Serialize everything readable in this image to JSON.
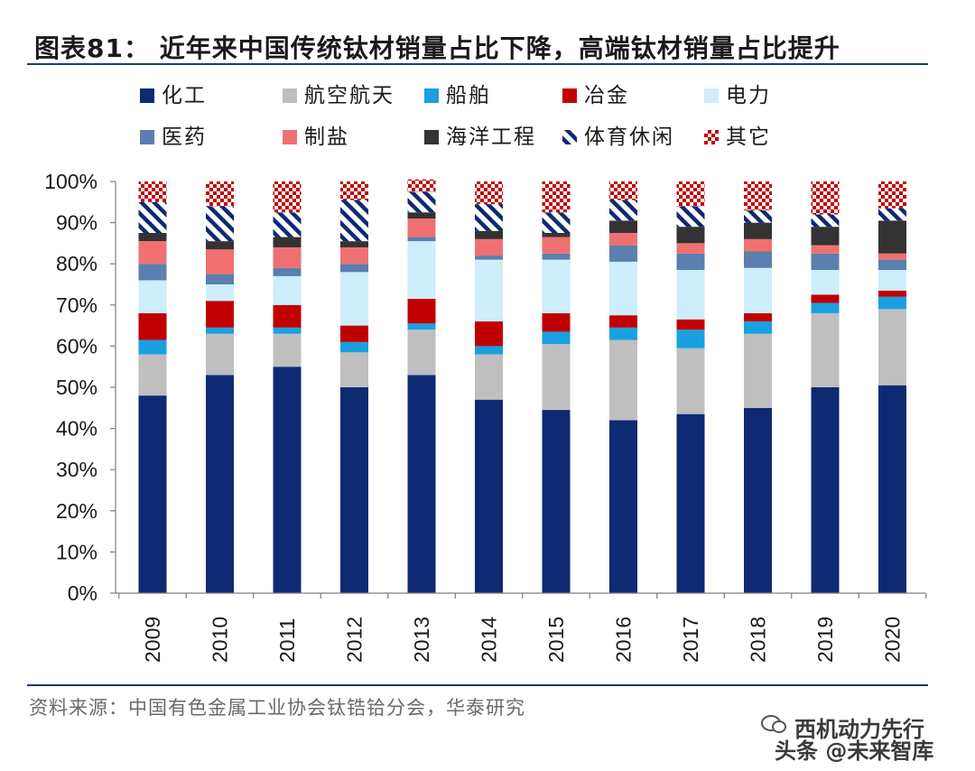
{
  "header": {
    "title": "图表81： 近年来中国传统钛材销量占比下降，高端钛材销量占比提升"
  },
  "footer": {
    "source": "资料来源：中国有色金属工业协会钛锆铪分会，华泰研究",
    "watermark_line1": "西机动力先行",
    "watermark_line2": "头条 @未来智库"
  },
  "chart_data": {
    "type": "bar",
    "stacked": true,
    "categories": [
      "2009",
      "2010",
      "2011",
      "2012",
      "2013",
      "2014",
      "2015",
      "2016",
      "2017",
      "2018",
      "2019",
      "2020"
    ],
    "ylim": [
      0,
      100
    ],
    "yticks": [
      "0%",
      "10%",
      "20%",
      "30%",
      "40%",
      "50%",
      "60%",
      "70%",
      "80%",
      "90%",
      "100%"
    ],
    "legend_position": "top",
    "series": [
      {
        "name": "化工",
        "color": "#0d2a73",
        "pattern": "solid",
        "values": [
          48,
          53,
          55,
          50,
          53,
          47,
          44.5,
          42,
          43.5,
          45,
          50,
          50.5
        ]
      },
      {
        "name": "航空航天",
        "color": "#bfbfbf",
        "pattern": "solid",
        "values": [
          10,
          10,
          8,
          8.5,
          11,
          11,
          16,
          19.5,
          16,
          18,
          18,
          18.5
        ]
      },
      {
        "name": "船舶",
        "color": "#1aa0e0",
        "pattern": "solid",
        "values": [
          3.5,
          1.5,
          1.5,
          2.5,
          1.5,
          2,
          3,
          3,
          4.5,
          3,
          2.5,
          3
        ]
      },
      {
        "name": "冶金",
        "color": "#c00000",
        "pattern": "solid",
        "values": [
          6.5,
          6.5,
          5.5,
          4,
          6,
          6,
          4.5,
          3,
          2.5,
          2,
          2,
          1.5
        ]
      },
      {
        "name": "电力",
        "color": "#cdeefa",
        "pattern": "solid",
        "values": [
          8,
          4,
          7,
          13,
          14,
          15,
          13,
          13,
          12,
          11,
          6,
          5
        ]
      },
      {
        "name": "医药",
        "color": "#5b7fae",
        "pattern": "solid",
        "values": [
          4,
          2.5,
          2,
          2,
          1,
          1,
          1.5,
          4,
          4,
          4,
          4,
          2.5
        ]
      },
      {
        "name": "制盐",
        "color": "#f07070",
        "pattern": "solid",
        "values": [
          5.5,
          6,
          5,
          4,
          4.5,
          4,
          4,
          3,
          2.5,
          3,
          2,
          1.5
        ]
      },
      {
        "name": "海洋工程",
        "color": "#333333",
        "pattern": "solid",
        "values": [
          2,
          2,
          2.5,
          1.5,
          1.5,
          2,
          1,
          3,
          4,
          4,
          4.5,
          8
        ]
      },
      {
        "name": "体育休闲",
        "color": "#0d2a73",
        "pattern": "diagonal",
        "values": [
          7.5,
          8.5,
          6,
          10,
          5,
          6.5,
          5,
          5,
          5,
          3,
          3,
          3
        ]
      },
      {
        "name": "其它",
        "color": "#c00000",
        "pattern": "checker",
        "values": [
          5,
          6,
          7.5,
          4.5,
          3,
          5.5,
          7.5,
          4.5,
          6,
          7,
          8,
          6.5
        ]
      }
    ]
  }
}
